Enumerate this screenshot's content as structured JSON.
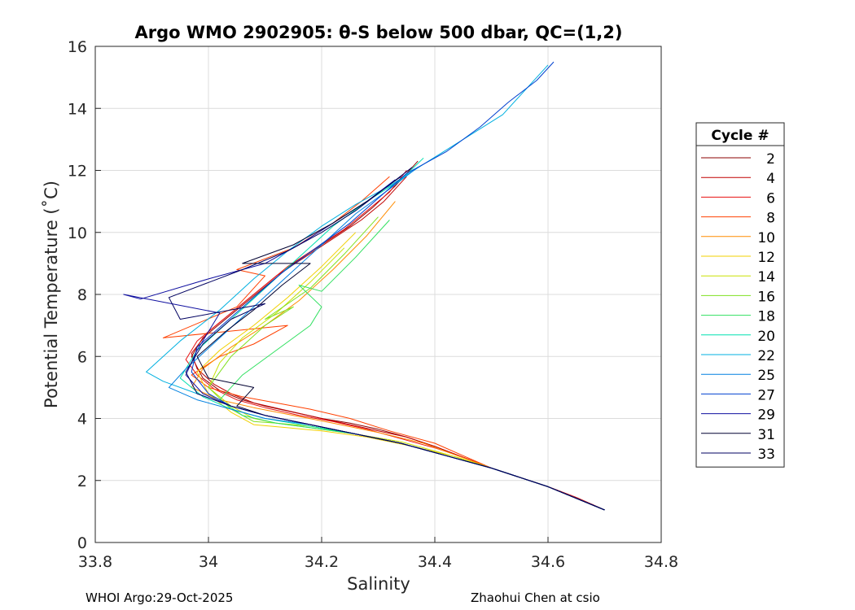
{
  "chart_data": {
    "type": "line",
    "title": "Argo WMO 2902905: θ-S below 500 dbar,  QC=(1,2)",
    "xlabel": "Salinity",
    "ylabel": "Potential Temperature (˚C)",
    "xlim": [
      33.8,
      34.8
    ],
    "ylim": [
      0,
      16
    ],
    "xticks": [
      "33.8",
      "34",
      "34.2",
      "34.4",
      "34.6",
      "34.8"
    ],
    "yticks": [
      "0",
      "2",
      "4",
      "6",
      "8",
      "10",
      "12",
      "14",
      "16"
    ],
    "grid": true,
    "legend": {
      "title": "Cycle #",
      "placement": "right",
      "entries": [
        {
          "label": "2",
          "color": "#8b0000"
        },
        {
          "label": "4",
          "color": "#c00000"
        },
        {
          "label": "6",
          "color": "#e81010"
        },
        {
          "label": "8",
          "color": "#ff4000"
        },
        {
          "label": "10",
          "color": "#ff8c00"
        },
        {
          "label": "12",
          "color": "#f0d000"
        },
        {
          "label": "14",
          "color": "#c8e000"
        },
        {
          "label": "16",
          "color": "#80e020"
        },
        {
          "label": "18",
          "color": "#30e060"
        },
        {
          "label": "20",
          "color": "#00e0b0"
        },
        {
          "label": "22",
          "color": "#00b0e0"
        },
        {
          "label": "25",
          "color": "#0080e0"
        },
        {
          "label": "27",
          "color": "#0040d0"
        },
        {
          "label": "29",
          "color": "#1010a0"
        },
        {
          "label": "31",
          "color": "#000030"
        },
        {
          "label": "33",
          "color": "#000060"
        }
      ]
    },
    "series": [
      {
        "name": "2",
        "x": [
          34.7,
          34.65,
          34.6,
          34.55,
          34.5,
          34.45,
          34.4,
          34.35,
          34.3,
          34.25,
          34.2,
          34.15,
          34.1,
          34.06,
          34.02,
          33.99,
          33.97,
          33.99,
          34.03,
          34.07,
          34.11,
          34.15,
          34.2,
          34.25,
          34.29,
          34.33,
          34.37
        ],
        "y": [
          1.05,
          1.45,
          1.8,
          2.1,
          2.4,
          2.75,
          3.1,
          3.4,
          3.65,
          3.85,
          4.0,
          4.2,
          4.4,
          4.6,
          4.9,
          5.3,
          6.0,
          6.6,
          7.2,
          7.8,
          8.4,
          9.0,
          9.6,
          10.2,
          10.8,
          11.5,
          12.3
        ]
      },
      {
        "name": "4",
        "x": [
          34.7,
          34.65,
          34.6,
          34.55,
          34.5,
          34.45,
          34.4,
          34.35,
          34.3,
          34.25,
          34.2,
          34.14,
          34.08,
          34.04,
          34.01,
          33.98,
          33.97,
          34.0,
          34.04,
          34.08,
          34.12,
          34.17,
          34.22,
          34.27,
          34.31,
          34.35
        ],
        "y": [
          1.05,
          1.45,
          1.8,
          2.1,
          2.4,
          2.75,
          3.1,
          3.4,
          3.6,
          3.8,
          4.0,
          4.25,
          4.5,
          4.8,
          5.1,
          5.6,
          6.1,
          6.8,
          7.4,
          8.0,
          8.6,
          9.2,
          9.8,
          10.4,
          11.0,
          11.8
        ]
      },
      {
        "name": "6",
        "x": [
          34.7,
          34.65,
          34.6,
          34.55,
          34.5,
          34.45,
          34.4,
          34.34,
          34.28,
          34.22,
          34.16,
          34.1,
          34.05,
          34.01,
          33.98,
          33.96,
          33.98,
          34.02,
          34.06,
          34.1,
          34.14,
          34.19,
          34.24,
          34.28,
          34.32,
          34.35
        ],
        "y": [
          1.05,
          1.45,
          1.8,
          2.1,
          2.4,
          2.75,
          3.05,
          3.35,
          3.65,
          3.9,
          4.1,
          4.35,
          4.6,
          4.95,
          5.4,
          5.9,
          6.5,
          7.1,
          7.7,
          8.3,
          8.9,
          9.5,
          10.1,
          10.7,
          11.3,
          12.0
        ]
      },
      {
        "name": "8",
        "x": [
          34.7,
          34.6,
          34.5,
          34.45,
          34.4,
          34.32,
          34.25,
          34.18,
          34.12,
          34.06,
          34.0,
          33.97,
          34.02,
          34.08,
          34.14,
          33.92,
          34.05,
          34.1,
          34.05,
          34.15,
          34.22,
          34.27,
          34.32
        ],
        "y": [
          1.05,
          1.8,
          2.4,
          2.8,
          3.2,
          3.6,
          4.0,
          4.3,
          4.5,
          4.7,
          5.0,
          5.4,
          6.0,
          6.4,
          7.0,
          6.6,
          7.6,
          8.6,
          8.8,
          9.5,
          10.3,
          11.0,
          11.8
        ]
      },
      {
        "name": "10",
        "x": [
          34.7,
          34.6,
          34.5,
          34.44,
          34.38,
          34.3,
          34.22,
          34.15,
          34.08,
          34.02,
          33.97,
          33.99,
          34.04,
          34.1,
          34.16,
          34.22,
          34.28,
          34.33
        ],
        "y": [
          1.05,
          1.8,
          2.4,
          2.8,
          3.2,
          3.55,
          3.85,
          4.1,
          4.35,
          4.6,
          5.0,
          5.6,
          6.3,
          7.0,
          7.8,
          8.8,
          9.9,
          11.0
        ]
      },
      {
        "name": "12",
        "x": [
          34.7,
          34.6,
          34.5,
          34.44,
          34.36,
          34.28,
          34.2,
          34.14,
          34.08,
          34.04,
          34.0,
          33.98,
          34.02,
          34.08,
          34.14,
          34.2,
          34.26
        ],
        "y": [
          1.05,
          1.8,
          2.4,
          2.75,
          3.1,
          3.4,
          3.6,
          3.7,
          3.8,
          4.2,
          4.8,
          5.5,
          6.2,
          7.0,
          7.9,
          8.9,
          10.0
        ]
      },
      {
        "name": "14",
        "x": [
          34.7,
          34.6,
          34.5,
          34.42,
          34.34,
          34.26,
          34.18,
          34.12,
          34.08,
          34.04,
          34.0,
          34.02,
          34.06,
          34.12,
          34.18,
          34.24
        ],
        "y": [
          1.05,
          1.8,
          2.4,
          2.85,
          3.25,
          3.5,
          3.75,
          3.85,
          4.0,
          4.4,
          5.0,
          5.8,
          6.6,
          7.4,
          8.4,
          9.5
        ]
      },
      {
        "name": "16",
        "x": [
          34.7,
          34.6,
          34.5,
          34.42,
          34.34,
          34.26,
          34.18,
          34.12,
          34.08,
          34.04,
          34.0,
          34.04,
          34.1,
          34.15,
          34.1,
          34.18,
          34.24,
          34.3
        ],
        "y": [
          1.05,
          1.8,
          2.4,
          2.8,
          3.2,
          3.5,
          3.7,
          3.85,
          3.9,
          4.3,
          5.0,
          6.0,
          7.0,
          7.6,
          7.2,
          8.2,
          9.3,
          10.5
        ]
      },
      {
        "name": "18",
        "x": [
          34.7,
          34.6,
          34.5,
          34.42,
          34.34,
          34.26,
          34.18,
          34.12,
          34.06,
          34.02,
          34.06,
          34.12,
          34.18,
          34.2,
          34.16,
          34.2,
          34.26,
          34.32
        ],
        "y": [
          1.05,
          1.8,
          2.4,
          2.8,
          3.2,
          3.5,
          3.7,
          3.85,
          4.1,
          4.6,
          5.4,
          6.2,
          7.0,
          7.6,
          8.3,
          8.1,
          9.2,
          10.4
        ]
      },
      {
        "name": "20",
        "x": [
          34.7,
          34.6,
          34.5,
          34.42,
          34.34,
          34.26,
          34.18,
          34.1,
          34.04,
          33.99,
          33.95,
          33.98,
          34.04,
          34.1,
          34.16,
          34.22,
          34.28,
          34.34,
          34.38
        ],
        "y": [
          1.05,
          1.8,
          2.4,
          2.8,
          3.2,
          3.5,
          3.75,
          4.0,
          4.3,
          4.7,
          5.3,
          6.2,
          7.2,
          8.2,
          9.2,
          10.2,
          11.0,
          11.7,
          12.4
        ]
      },
      {
        "name": "22",
        "x": [
          34.7,
          34.6,
          34.5,
          34.42,
          34.34,
          34.26,
          34.18,
          34.1,
          34.04,
          33.98,
          33.92,
          33.89,
          33.95,
          34.02,
          34.08,
          34.14,
          34.2,
          34.26,
          34.32,
          34.38,
          34.45,
          34.52,
          34.56,
          34.6
        ],
        "y": [
          1.05,
          1.8,
          2.4,
          2.8,
          3.2,
          3.5,
          3.8,
          4.1,
          4.4,
          4.8,
          5.2,
          5.5,
          6.5,
          7.5,
          8.5,
          9.4,
          10.2,
          10.9,
          11.5,
          12.2,
          13.0,
          13.8,
          14.6,
          15.4
        ]
      },
      {
        "name": "25",
        "x": [
          34.7,
          34.6,
          34.5,
          34.42,
          34.34,
          34.26,
          34.18,
          34.1,
          34.04,
          33.98,
          33.93,
          33.96,
          34.02,
          34.08,
          34.14,
          34.2,
          34.26,
          34.32,
          34.37
        ],
        "y": [
          1.05,
          1.8,
          2.4,
          2.8,
          3.2,
          3.5,
          3.8,
          4.0,
          4.3,
          4.6,
          5.0,
          5.6,
          6.6,
          7.6,
          8.6,
          9.6,
          10.6,
          11.4,
          12.1
        ]
      },
      {
        "name": "27",
        "x": [
          34.7,
          34.6,
          34.5,
          34.42,
          34.34,
          34.26,
          34.18,
          34.1,
          34.04,
          34.0,
          33.97,
          33.98,
          34.03,
          34.08,
          34.13,
          34.19,
          34.25,
          34.3,
          34.35,
          34.42,
          34.48,
          34.53,
          34.58,
          34.61
        ],
        "y": [
          1.05,
          1.8,
          2.4,
          2.8,
          3.2,
          3.5,
          3.8,
          4.1,
          4.4,
          4.8,
          5.5,
          6.3,
          7.1,
          7.9,
          8.7,
          9.5,
          10.3,
          11.1,
          11.9,
          12.6,
          13.4,
          14.2,
          14.9,
          15.5
        ]
      },
      {
        "name": "29",
        "x": [
          34.7,
          34.6,
          34.5,
          34.42,
          34.34,
          34.26,
          34.18,
          34.1,
          34.04,
          33.99,
          33.96,
          33.98,
          34.02,
          33.85,
          33.88,
          34.0,
          34.1,
          34.16,
          34.22,
          34.28,
          34.33
        ],
        "y": [
          1.05,
          1.8,
          2.4,
          2.8,
          3.2,
          3.5,
          3.8,
          4.1,
          4.4,
          4.8,
          5.4,
          6.2,
          7.4,
          8.0,
          7.85,
          8.5,
          9.0,
          9.6,
          10.3,
          11.0,
          11.7
        ]
      },
      {
        "name": "31",
        "x": [
          34.7,
          34.6,
          34.5,
          34.42,
          34.34,
          34.26,
          34.18,
          34.1,
          34.05,
          34.08,
          34.0,
          33.98,
          34.03,
          34.08,
          34.13,
          34.18,
          34.06,
          34.15,
          34.22,
          34.28,
          34.34
        ],
        "y": [
          1.05,
          1.8,
          2.4,
          2.8,
          3.2,
          3.5,
          3.8,
          4.1,
          4.4,
          5.0,
          5.3,
          6.0,
          6.8,
          7.5,
          8.3,
          9.0,
          9.0,
          9.6,
          10.3,
          11.0,
          11.8
        ]
      },
      {
        "name": "33",
        "x": [
          34.7,
          34.6,
          34.5,
          34.42,
          34.34,
          34.26,
          34.18,
          34.1,
          34.04,
          33.98,
          33.96,
          33.99,
          34.04,
          34.1,
          33.95,
          33.93,
          34.06,
          34.14,
          34.2,
          34.26,
          34.31,
          34.36
        ],
        "y": [
          1.05,
          1.8,
          2.4,
          2.8,
          3.2,
          3.5,
          3.8,
          4.1,
          4.4,
          4.8,
          5.5,
          6.4,
          7.2,
          7.7,
          7.2,
          7.9,
          8.8,
          9.4,
          10.0,
          10.7,
          11.4,
          12.1
        ]
      }
    ]
  },
  "footer": {
    "left": "WHOI Argo:29-Oct-2025",
    "right": "Zhaohui Chen at csio"
  }
}
